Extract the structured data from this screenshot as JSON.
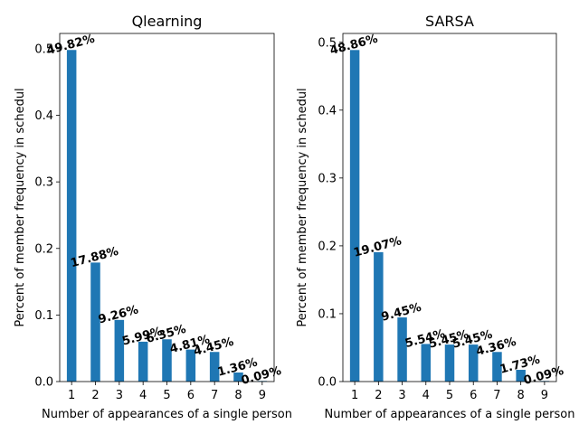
{
  "chart_data": [
    {
      "type": "bar",
      "title": "Qlearning",
      "xlabel": "Number of appearances of a single person",
      "ylabel": "Percent of member frequency in schedul",
      "categories": [
        "1",
        "2",
        "3",
        "4",
        "5",
        "6",
        "7",
        "8",
        "9"
      ],
      "values": [
        0.4982,
        0.1788,
        0.0926,
        0.0599,
        0.0635,
        0.0481,
        0.0445,
        0.0136,
        0.0009
      ],
      "data_labels": [
        "49.82%",
        "17.88%",
        "9.26%",
        "5.99%",
        "6.35%",
        "4.81%",
        "4.45%",
        "1.36%",
        "0.09%"
      ],
      "yticks": [
        "0.0",
        "0.1",
        "0.2",
        "0.3",
        "0.4",
        "0.5"
      ],
      "ylim": [
        0,
        0.523
      ],
      "grid": false,
      "bar_color": "#1f77b4"
    },
    {
      "type": "bar",
      "title": "SARSA",
      "xlabel": "Number of appearances of a single person",
      "ylabel": "Percent of member frequency in schedul",
      "categories": [
        "1",
        "2",
        "3",
        "4",
        "5",
        "6",
        "7",
        "8",
        "9"
      ],
      "values": [
        0.4886,
        0.1907,
        0.0945,
        0.0554,
        0.0545,
        0.0545,
        0.0436,
        0.0173,
        0.0009
      ],
      "data_labels": [
        "48.86%",
        "19.07%",
        "9.45%",
        "5.54%",
        "5.45%",
        "5.45%",
        "4.36%",
        "1.73%",
        "0.09%"
      ],
      "yticks": [
        "0.0",
        "0.1",
        "0.2",
        "0.3",
        "0.4",
        "0.5"
      ],
      "ylim": [
        0,
        0.513
      ],
      "grid": false,
      "bar_color": "#1f77b4"
    }
  ]
}
